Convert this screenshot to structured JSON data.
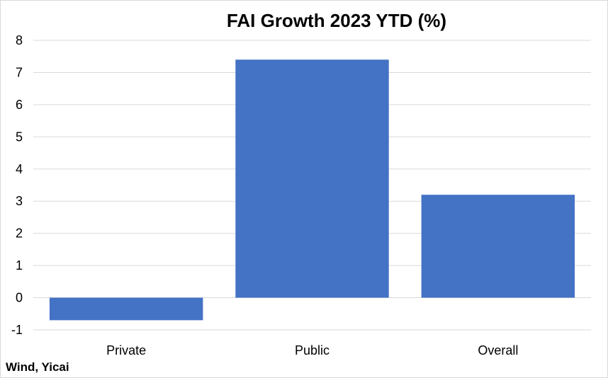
{
  "chart_data": {
    "type": "bar",
    "title": "FAI Growth 2023 YTD (%)",
    "categories": [
      "Private",
      "Public",
      "Overall"
    ],
    "values": [
      -0.7,
      7.4,
      3.2
    ],
    "xlabel": "",
    "ylabel": "",
    "ylim": [
      -1,
      8
    ],
    "yticks": [
      -1,
      0,
      1,
      2,
      3,
      4,
      5,
      6,
      7,
      8
    ],
    "grid": true,
    "bar_color": "#4472C4",
    "grid_color": "#d9d9d9"
  },
  "source": "Wind, Yicai"
}
